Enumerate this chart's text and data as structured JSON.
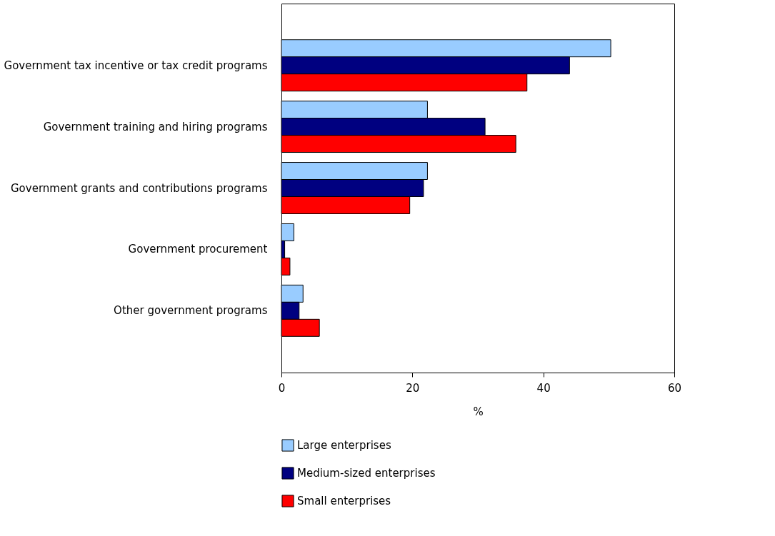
{
  "chart_data": {
    "type": "bar",
    "orientation": "horizontal",
    "xlabel": "%",
    "categories": [
      "Government tax incentive or tax credit programs",
      "Government training and hiring programs",
      "Government grants and contributions programs",
      "Government procurement",
      "Other government programs"
    ],
    "series": [
      {
        "name": "Large enterprises",
        "color": "#99ccff",
        "values": [
          50.3,
          22.3,
          22.3,
          1.9,
          3.3
        ]
      },
      {
        "name": "Medium-sized enterprises",
        "color": "#000080",
        "values": [
          44.0,
          31.1,
          21.7,
          0.5,
          2.7
        ]
      },
      {
        "name": "Small enterprises",
        "color": "#ff0000",
        "values": [
          37.5,
          35.8,
          19.6,
          1.3,
          5.8
        ]
      }
    ],
    "xlim": [
      0,
      60
    ],
    "xticks": [
      0,
      20,
      40,
      60
    ],
    "grid": false,
    "legend": "bottom"
  }
}
